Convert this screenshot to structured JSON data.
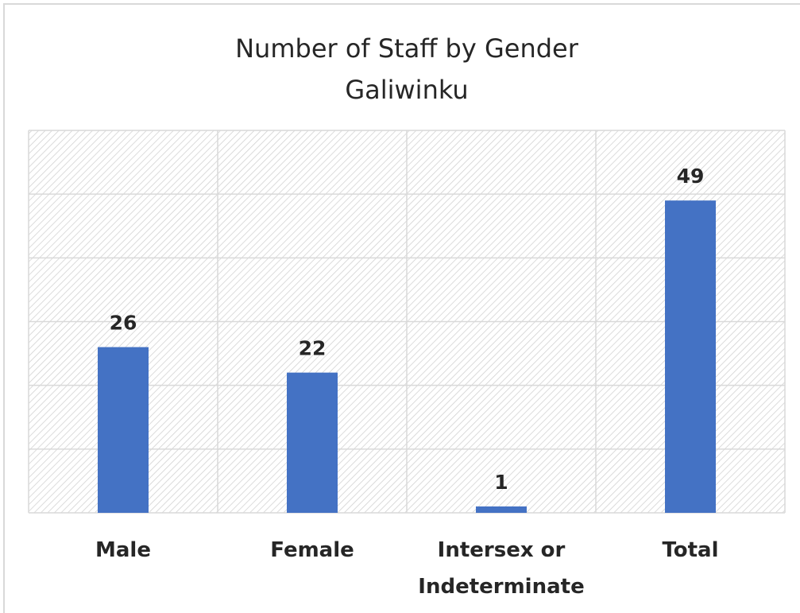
{
  "chart_data": {
    "type": "bar",
    "title": "Number of Staff by Gender",
    "subtitle": "Galiwinku",
    "categories": [
      "Male",
      "Female",
      "Intersex or Indeterminate",
      "Total"
    ],
    "values": [
      26,
      22,
      1,
      49
    ],
    "color": "#4472c4",
    "ylim": [
      0,
      60
    ],
    "yticks": [
      0,
      10,
      20,
      30,
      40,
      50,
      60
    ],
    "grid": true
  }
}
